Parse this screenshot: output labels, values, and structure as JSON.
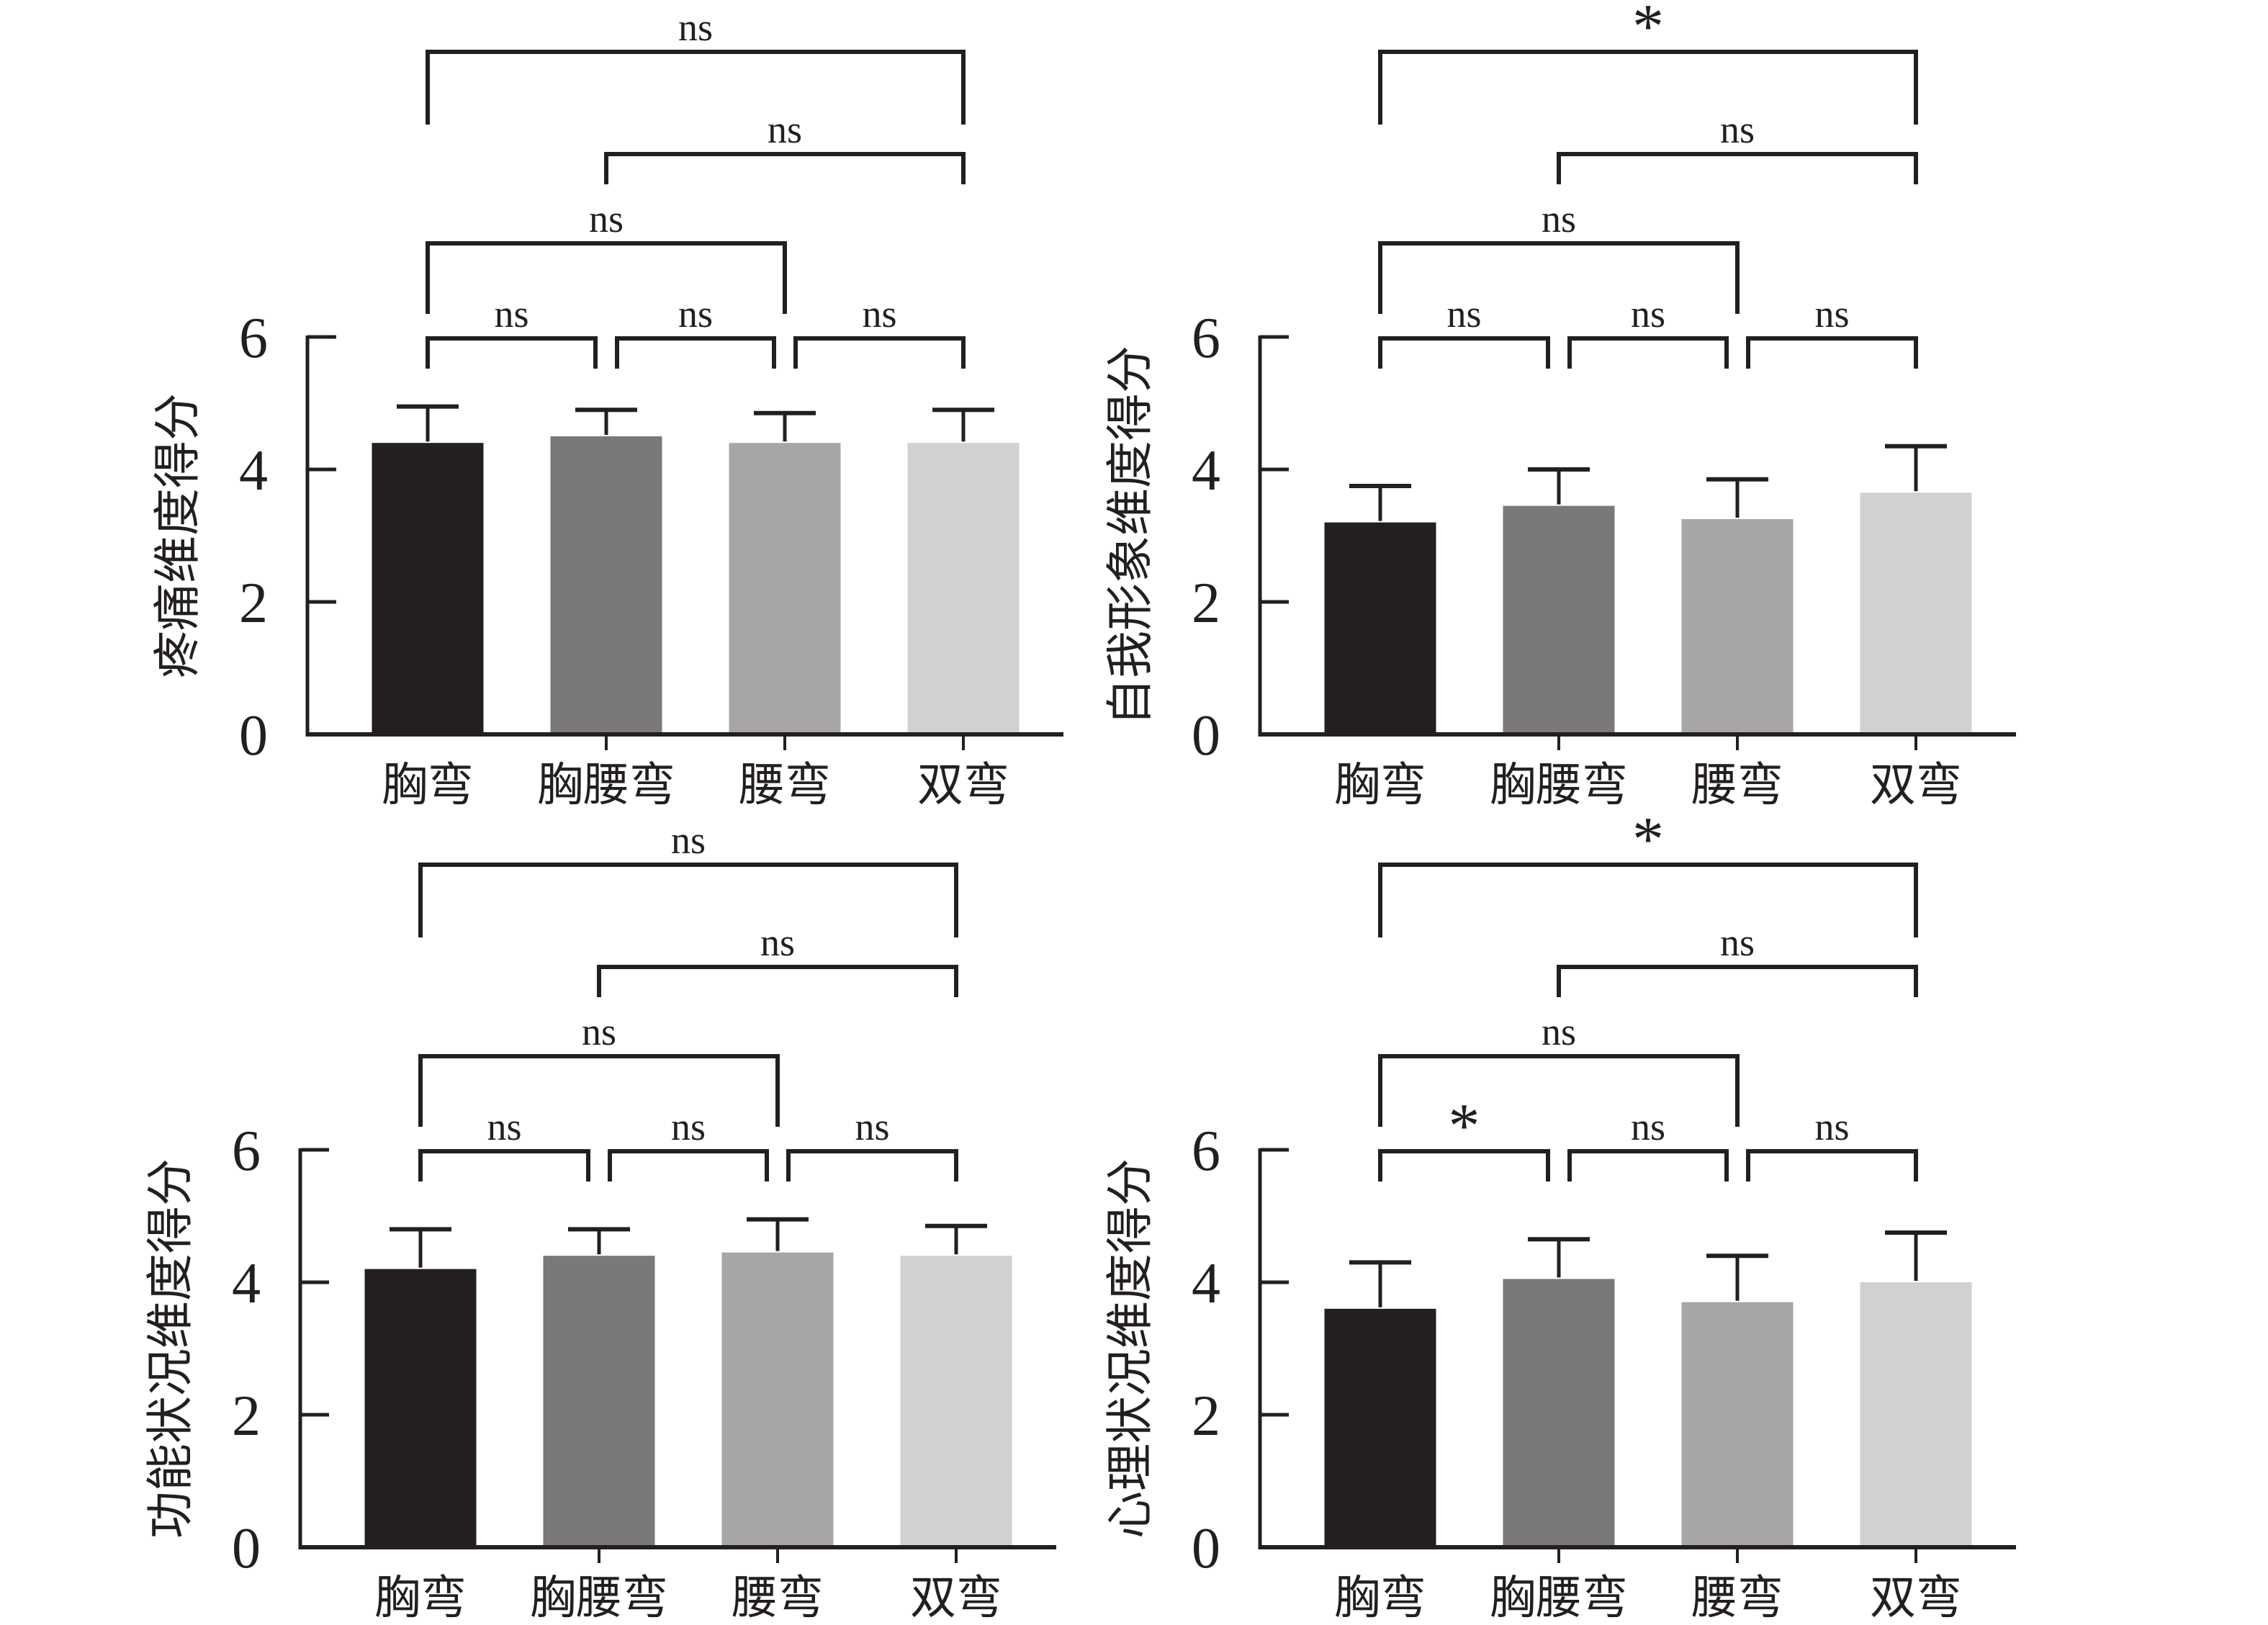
{
  "figure": {
    "background": "#ffffff",
    "ink": "#231f20",
    "bar_colors": [
      "#231f20",
      "#7a7878",
      "#a7a5a6",
      "#d1d1d1"
    ],
    "categories": [
      "胸弯",
      "胸腰弯",
      "腰弯",
      "双弯"
    ],
    "not_significant_label": "ns",
    "significant_label": "*"
  },
  "chart_data": [
    {
      "type": "bar",
      "panel": "top-left",
      "title": "",
      "xlabel": "",
      "ylabel": "疼痛维度得分",
      "categories": [
        "胸弯",
        "胸腰弯",
        "腰弯",
        "双弯"
      ],
      "values": [
        4.4,
        4.5,
        4.4,
        4.4
      ],
      "errors_plus": [
        0.55,
        0.4,
        0.45,
        0.5
      ],
      "ylim": [
        0,
        6
      ],
      "yticks": [
        0,
        2,
        4,
        6
      ],
      "grid": false,
      "legend": null,
      "significance": [
        {
          "a": 0,
          "b": 1,
          "label": "ns",
          "level": 1
        },
        {
          "a": 1,
          "b": 2,
          "label": "ns",
          "level": 1
        },
        {
          "a": 2,
          "b": 3,
          "label": "ns",
          "level": 1
        },
        {
          "a": 0,
          "b": 2,
          "label": "ns",
          "level": 2
        },
        {
          "a": 1,
          "b": 3,
          "label": "ns",
          "level": 3
        },
        {
          "a": 0,
          "b": 3,
          "label": "ns",
          "level": 4
        }
      ]
    },
    {
      "type": "bar",
      "panel": "top-right",
      "title": "",
      "xlabel": "",
      "ylabel": "自我形象维度得分",
      "categories": [
        "胸弯",
        "胸腰弯",
        "腰弯",
        "双弯"
      ],
      "values": [
        3.2,
        3.45,
        3.25,
        3.65
      ],
      "errors_plus": [
        0.55,
        0.55,
        0.6,
        0.7
      ],
      "ylim": [
        0,
        6
      ],
      "yticks": [
        0,
        2,
        4,
        6
      ],
      "grid": false,
      "legend": null,
      "significance": [
        {
          "a": 0,
          "b": 1,
          "label": "ns",
          "level": 1
        },
        {
          "a": 1,
          "b": 2,
          "label": "ns",
          "level": 1
        },
        {
          "a": 2,
          "b": 3,
          "label": "ns",
          "level": 1
        },
        {
          "a": 0,
          "b": 2,
          "label": "ns",
          "level": 2
        },
        {
          "a": 1,
          "b": 3,
          "label": "ns",
          "level": 3
        },
        {
          "a": 0,
          "b": 3,
          "label": "*",
          "level": 4
        }
      ]
    },
    {
      "type": "bar",
      "panel": "bottom-left",
      "title": "",
      "xlabel": "",
      "ylabel": "功能状况维度得分",
      "categories": [
        "胸弯",
        "胸腰弯",
        "腰弯",
        "双弯"
      ],
      "values": [
        4.2,
        4.4,
        4.45,
        4.4
      ],
      "errors_plus": [
        0.6,
        0.4,
        0.5,
        0.45
      ],
      "ylim": [
        0,
        6
      ],
      "yticks": [
        0,
        2,
        4,
        6
      ],
      "grid": false,
      "legend": null,
      "significance": [
        {
          "a": 0,
          "b": 1,
          "label": "ns",
          "level": 1
        },
        {
          "a": 1,
          "b": 2,
          "label": "ns",
          "level": 1
        },
        {
          "a": 2,
          "b": 3,
          "label": "ns",
          "level": 1
        },
        {
          "a": 0,
          "b": 2,
          "label": "ns",
          "level": 2
        },
        {
          "a": 1,
          "b": 3,
          "label": "ns",
          "level": 3
        },
        {
          "a": 0,
          "b": 3,
          "label": "ns",
          "level": 4
        }
      ]
    },
    {
      "type": "bar",
      "panel": "bottom-right",
      "title": "",
      "xlabel": "",
      "ylabel": "心理状况维度得分",
      "categories": [
        "胸弯",
        "胸腰弯",
        "腰弯",
        "双弯"
      ],
      "values": [
        3.6,
        4.05,
        3.7,
        4.0
      ],
      "errors_plus": [
        0.7,
        0.6,
        0.7,
        0.75
      ],
      "ylim": [
        0,
        6
      ],
      "yticks": [
        0,
        2,
        4,
        6
      ],
      "grid": false,
      "legend": null,
      "significance": [
        {
          "a": 0,
          "b": 1,
          "label": "*",
          "level": 1
        },
        {
          "a": 1,
          "b": 2,
          "label": "ns",
          "level": 1
        },
        {
          "a": 2,
          "b": 3,
          "label": "ns",
          "level": 1
        },
        {
          "a": 0,
          "b": 2,
          "label": "ns",
          "level": 2
        },
        {
          "a": 1,
          "b": 3,
          "label": "ns",
          "level": 3
        },
        {
          "a": 0,
          "b": 3,
          "label": "*",
          "level": 4
        }
      ]
    }
  ]
}
